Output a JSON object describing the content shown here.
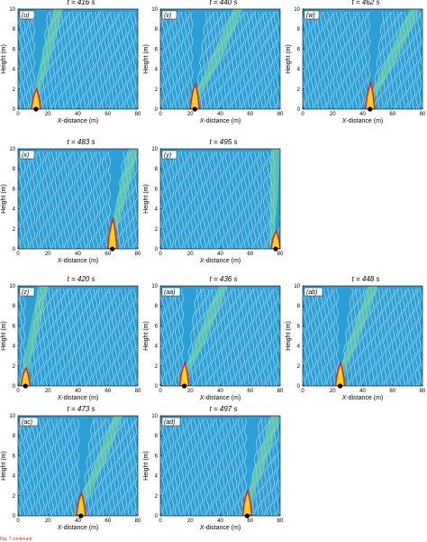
{
  "axes": {
    "xlabel": "X-distance (m)",
    "ylabel": "Height (m)",
    "xticks": [
      "0",
      "20",
      "40",
      "60",
      "80"
    ],
    "yticks": [
      "0",
      "2",
      "4",
      "6",
      "8",
      "10"
    ],
    "xlim": [
      0,
      80
    ],
    "ylim": [
      0,
      10
    ]
  },
  "colors": {
    "background": "#2b9fd6",
    "stream": "#bfe6f6",
    "flame_outer": "#d62728",
    "flame_inner": "#ffd21a",
    "plume": "#7fdc9a",
    "marker": "#000000"
  },
  "caption_text": "Fig. 7 continued",
  "chart_data": [
    {
      "type": "heatmap",
      "panel": "(u)",
      "time_label": "t = 416 s",
      "fire_front_x": 12,
      "flame_height": 2.0,
      "plume_extent_x": 30
    },
    {
      "type": "heatmap",
      "panel": "(v)",
      "time_label": "t = 440 s",
      "fire_front_x": 23,
      "flame_height": 2.5,
      "plume_extent_x": 55
    },
    {
      "type": "heatmap",
      "panel": "(w)",
      "time_label": "t = 462 s",
      "fire_front_x": 45,
      "flame_height": 2.6,
      "plume_extent_x": 78
    },
    {
      "type": "heatmap",
      "panel": "(x)",
      "time_label": "t = 483 s",
      "fire_front_x": 63,
      "flame_height": 3.0,
      "plume_extent_x": 80
    },
    {
      "type": "heatmap",
      "panel": "(y)",
      "time_label": "t = 495 s",
      "fire_front_x": 77,
      "flame_height": 1.8,
      "plume_extent_x": 80
    },
    {
      "type": "heatmap",
      "panel": "(z)",
      "time_label": "t = 420 s",
      "fire_front_x": 5,
      "flame_height": 1.8,
      "plume_extent_x": 20
    },
    {
      "type": "heatmap",
      "panel": "(aa)",
      "time_label": "t = 436 s",
      "fire_front_x": 16,
      "flame_height": 2.3,
      "plume_extent_x": 45
    },
    {
      "type": "heatmap",
      "panel": "(ab)",
      "time_label": "t = 448 s",
      "fire_front_x": 25,
      "flame_height": 2.3,
      "plume_extent_x": 50
    },
    {
      "type": "heatmap",
      "panel": "(ac)",
      "time_label": "t = 473 s",
      "fire_front_x": 42,
      "flame_height": 2.3,
      "plume_extent_x": 70
    },
    {
      "type": "heatmap",
      "panel": "(ad)",
      "time_label": "t = 497 s",
      "fire_front_x": 58,
      "flame_height": 2.5,
      "plume_extent_x": 80
    }
  ]
}
